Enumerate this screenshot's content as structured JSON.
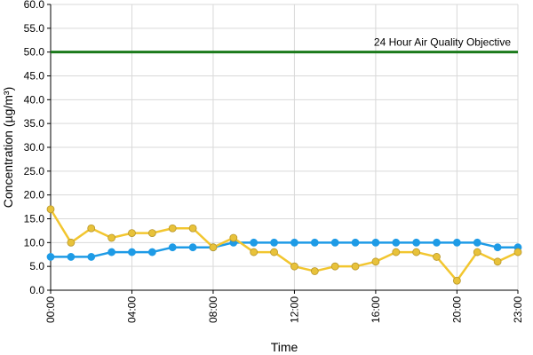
{
  "chart_data": {
    "type": "line",
    "title": "",
    "xlabel": "Time",
    "ylabel": "Concentration (µg/m³)",
    "ylim": [
      0,
      60
    ],
    "y_ticks": [
      "0.0",
      "5.0",
      "10.0",
      "15.0",
      "20.0",
      "25.0",
      "30.0",
      "35.0",
      "40.0",
      "45.0",
      "50.0",
      "55.0",
      "60.0"
    ],
    "x_ticks": [
      "00:00",
      "04:00",
      "08:00",
      "12:00",
      "16:00",
      "20:00",
      "23:00"
    ],
    "x_tick_hours": [
      0,
      4,
      8,
      12,
      16,
      20,
      23
    ],
    "hours": [
      0,
      1,
      2,
      3,
      4,
      5,
      6,
      7,
      8,
      9,
      10,
      11,
      12,
      13,
      14,
      15,
      16,
      17,
      18,
      19,
      20,
      21,
      22,
      23
    ],
    "grid": true,
    "legend": "none",
    "series": [
      {
        "color": "#1e9be6",
        "marker_color": "#1e9be6",
        "values": [
          7,
          7,
          7,
          8,
          8,
          8,
          9,
          9,
          9,
          10,
          10,
          10,
          10,
          10,
          10,
          10,
          10,
          10,
          10,
          10,
          10,
          10,
          9,
          9
        ]
      },
      {
        "color": "#f2c62f",
        "marker_color": "#e8c23a",
        "values": [
          17,
          10,
          13,
          11,
          12,
          12,
          13,
          13,
          9,
          11,
          8,
          8,
          5,
          4,
          5,
          5,
          6,
          8,
          8,
          7,
          2,
          8,
          6,
          8
        ]
      }
    ],
    "reference_line": {
      "value": 50,
      "label": "24 Hour Air Quality Objective",
      "color": "#1b7a1b"
    }
  }
}
